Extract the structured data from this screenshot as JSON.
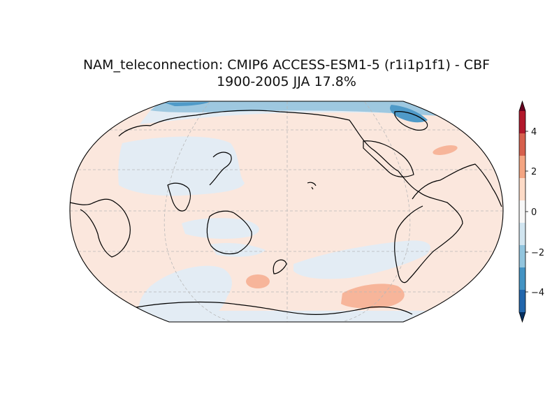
{
  "figure": {
    "title_line1": "NAM_teleconnection: CMIP6 ACCESS-ESM1-5 (r1i1p1f1) - CBF",
    "title_line2": "1900-2005 JJA 17.8%"
  },
  "map": {
    "projection": "Robinson",
    "central_longitude": 180,
    "coastlines": true,
    "gridlines": true
  },
  "colorbar": {
    "colormap": "RdBu_r",
    "extend": "both",
    "ticks": [
      "4",
      "2",
      "0",
      "−2",
      "−4"
    ],
    "bins": [
      "#67001f",
      "#b2182b",
      "#d6604d",
      "#f4a582",
      "#fddbc7",
      "#f7f7f7",
      "#d1e5f0",
      "#92c5de",
      "#4393c3",
      "#2166ac",
      "#053061"
    ]
  },
  "field": {
    "background_color": "#fbe7dd",
    "weak_negative_color": "#e3ecf4",
    "weak_positive_color": "#f7b59a",
    "moderate_negative_color": "#9ec8e0",
    "strong_negative_color": "#4f9ac8"
  }
}
